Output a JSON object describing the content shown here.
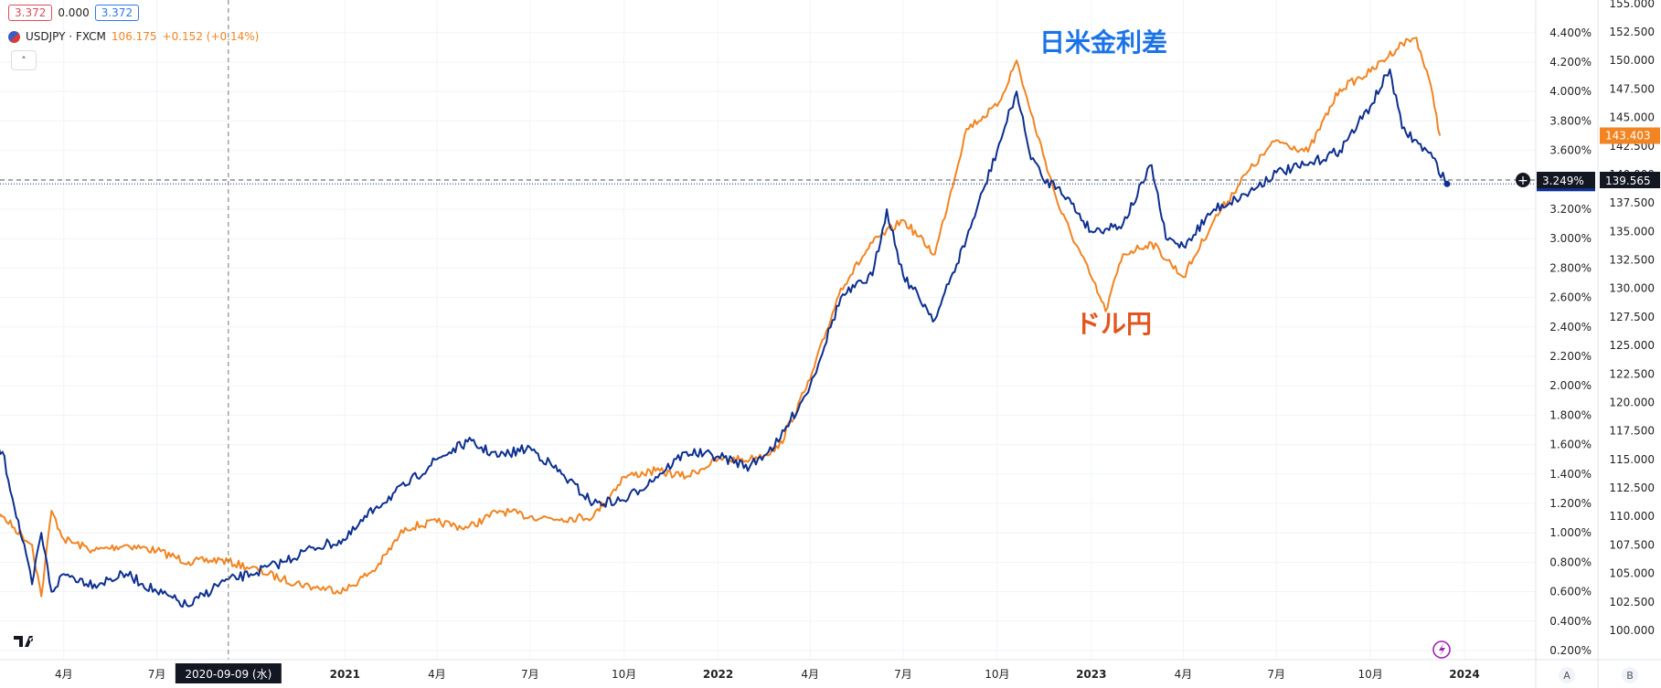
{
  "header": {
    "value_left": "3.372",
    "value_mid": "0.000",
    "value_right": "3.372",
    "symbol": "USDJPY · FXCM",
    "symbol_price": "106.175",
    "symbol_change": "+0.152 (+0.14%)",
    "collapse_glyph": "˄"
  },
  "annotations": {
    "rate_diff": "日米金利差",
    "usdjpy": "ドル円"
  },
  "crosshair_date_label": "2020-09-09 (水)",
  "price_badges": {
    "blue_top": "3.372%",
    "blue_bottom": "3.249%",
    "orange": "143.403",
    "crosshair_price": "139.565"
  },
  "scale_buttons": [
    "A",
    "B"
  ],
  "colors": {
    "rate_line": "#0d2f8f",
    "usdjpy_line": "#f28421",
    "rate_label": "#1a73e8",
    "usdjpy_label": "#e2551c"
  },
  "chart_data": {
    "type": "line",
    "x_ticks": [
      "4月",
      "7月",
      "2021",
      "4月",
      "7月",
      "10月",
      "2022",
      "4月",
      "7月",
      "10月",
      "2023",
      "4月",
      "7月",
      "10月",
      "2024"
    ],
    "left_axis": {
      "ticks": [
        "0.200%",
        "0.400%",
        "0.600%",
        "0.800%",
        "1.000%",
        "1.200%",
        "1.400%",
        "1.600%",
        "1.800%",
        "2.000%",
        "2.200%",
        "2.400%",
        "2.600%",
        "2.800%",
        "3.000%",
        "3.200%",
        "3.400%",
        "3.600%",
        "3.800%",
        "4.000%",
        "4.200%",
        "4.400%"
      ],
      "range": [
        0.2,
        4.4
      ]
    },
    "right_axis": {
      "ticks": [
        "100.000",
        "102.500",
        "105.000",
        "107.500",
        "110.000",
        "112.500",
        "115.000",
        "117.500",
        "120.000",
        "122.500",
        "125.000",
        "127.500",
        "130.000",
        "132.500",
        "135.000",
        "137.500",
        "140.000",
        "142.500",
        "145.000",
        "147.500",
        "150.000",
        "152.500",
        "155.000"
      ],
      "range": [
        100,
        155
      ]
    },
    "series": [
      {
        "name": "日米金利差",
        "x": [
          "2020-01-02",
          "2020-02-01",
          "2020-03-01",
          "2020-03-10",
          "2020-03-20",
          "2020-04-01",
          "2020-05-01",
          "2020-06-01",
          "2020-07-01",
          "2020-08-01",
          "2020-09-01",
          "2020-10-01",
          "2020-11-01",
          "2020-12-01",
          "2021-01-01",
          "2021-02-01",
          "2021-03-01",
          "2021-04-01",
          "2021-05-01",
          "2021-06-01",
          "2021-07-01",
          "2021-08-01",
          "2021-09-01",
          "2021-10-01",
          "2021-11-01",
          "2021-12-01",
          "2022-01-01",
          "2022-02-01",
          "2022-03-01",
          "2022-04-01",
          "2022-05-01",
          "2022-06-01",
          "2022-06-15",
          "2022-07-01",
          "2022-08-01",
          "2022-09-01",
          "2022-10-01",
          "2022-10-20",
          "2022-11-01",
          "2022-11-15",
          "2022-12-01",
          "2023-01-01",
          "2023-02-01",
          "2023-03-01",
          "2023-03-15",
          "2023-04-01",
          "2023-05-01",
          "2023-06-01",
          "2023-07-01",
          "2023-08-01",
          "2023-09-01",
          "2023-10-01",
          "2023-10-20",
          "2023-11-01",
          "2023-12-01",
          "2023-12-15"
        ],
        "values": [
          1.68,
          1.55,
          0.65,
          1.0,
          0.6,
          0.72,
          0.65,
          0.72,
          0.6,
          0.5,
          0.66,
          0.72,
          0.8,
          0.9,
          0.95,
          1.18,
          1.32,
          1.5,
          1.62,
          1.52,
          1.58,
          1.4,
          1.2,
          1.22,
          1.38,
          1.55,
          1.52,
          1.45,
          1.62,
          2.0,
          2.6,
          2.75,
          3.2,
          2.75,
          2.45,
          3.0,
          3.6,
          4.0,
          3.6,
          3.4,
          3.35,
          3.05,
          3.1,
          3.5,
          3.0,
          2.95,
          3.2,
          3.3,
          3.45,
          3.5,
          3.6,
          3.9,
          4.15,
          3.75,
          3.55,
          3.372
        ]
      },
      {
        "name": "ドル円",
        "x": [
          "2020-01-02",
          "2020-02-01",
          "2020-03-01",
          "2020-03-10",
          "2020-03-20",
          "2020-04-01",
          "2020-05-01",
          "2020-06-01",
          "2020-07-01",
          "2020-08-01",
          "2020-09-01",
          "2020-10-01",
          "2020-11-01",
          "2020-12-01",
          "2021-01-01",
          "2021-02-01",
          "2021-03-01",
          "2021-04-01",
          "2021-05-01",
          "2021-06-01",
          "2021-07-01",
          "2021-08-01",
          "2021-09-01",
          "2021-10-01",
          "2021-11-01",
          "2021-12-01",
          "2022-01-01",
          "2022-02-01",
          "2022-03-01",
          "2022-04-01",
          "2022-05-01",
          "2022-06-01",
          "2022-07-01",
          "2022-08-01",
          "2022-09-01",
          "2022-10-01",
          "2022-10-20",
          "2022-11-01",
          "2022-12-01",
          "2023-01-01",
          "2023-01-15",
          "2023-02-01",
          "2023-03-01",
          "2023-04-01",
          "2023-05-01",
          "2023-06-01",
          "2023-07-01",
          "2023-08-01",
          "2023-09-01",
          "2023-10-01",
          "2023-11-01",
          "2023-11-15",
          "2023-12-01",
          "2023-12-08"
        ],
        "values": [
          109.5,
          110.0,
          107.5,
          103.0,
          110.5,
          108.0,
          107.0,
          107.5,
          107.0,
          106.0,
          106.2,
          105.5,
          104.5,
          103.8,
          103.5,
          105.5,
          109.0,
          109.5,
          109.0,
          110.5,
          110.0,
          109.8,
          110.0,
          113.5,
          114.0,
          113.5,
          115.0,
          115.0,
          116.0,
          122.0,
          130.0,
          134.0,
          136.0,
          133.0,
          144.0,
          146.0,
          150.0,
          146.0,
          137.0,
          131.0,
          128.0,
          133.0,
          134.0,
          131.0,
          136.0,
          140.0,
          143.0,
          142.0,
          147.5,
          149.0,
          151.5,
          152.0,
          147.0,
          143.403
        ]
      }
    ]
  }
}
